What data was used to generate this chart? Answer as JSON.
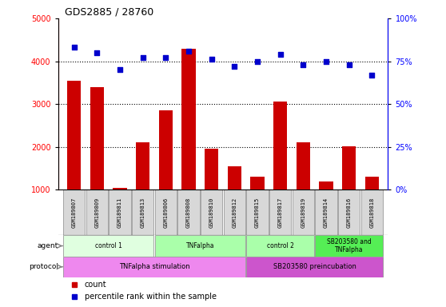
{
  "title": "GDS2885 / 28760",
  "samples": [
    "GSM189807",
    "GSM189809",
    "GSM189811",
    "GSM189813",
    "GSM189806",
    "GSM189808",
    "GSM189810",
    "GSM189812",
    "GSM189815",
    "GSM189817",
    "GSM189819",
    "GSM189814",
    "GSM189816",
    "GSM189818"
  ],
  "counts": [
    3550,
    3400,
    1050,
    2100,
    2850,
    4300,
    1950,
    1550,
    1300,
    3050,
    2100,
    1200,
    2020,
    1300
  ],
  "percentiles": [
    83,
    80,
    70,
    77,
    77,
    81,
    76,
    72,
    75,
    79,
    73,
    75,
    73,
    67
  ],
  "bar_color": "#cc0000",
  "dot_color": "#0000cc",
  "ylim_left": [
    1000,
    5000
  ],
  "ylim_right": [
    0,
    100
  ],
  "yticks_left": [
    1000,
    2000,
    3000,
    4000,
    5000
  ],
  "yticks_right": [
    0,
    25,
    50,
    75,
    100
  ],
  "agent_groups": [
    {
      "label": "control 1",
      "start": 0,
      "end": 3,
      "color": "#e0ffe0"
    },
    {
      "label": "TNFalpha",
      "start": 4,
      "end": 7,
      "color": "#aaffaa"
    },
    {
      "label": "control 2",
      "start": 8,
      "end": 10,
      "color": "#aaffaa"
    },
    {
      "label": "SB203580 and\nTNFalpha",
      "start": 11,
      "end": 13,
      "color": "#55ee55"
    }
  ],
  "protocol_groups": [
    {
      "label": "TNFalpha stimulation",
      "start": 0,
      "end": 7,
      "color": "#ee88ee"
    },
    {
      "label": "SB203580 preincubation",
      "start": 8,
      "end": 13,
      "color": "#cc55cc"
    }
  ],
  "title_fontsize": 9,
  "tick_fontsize": 7,
  "background_color": "#ffffff",
  "sample_bg_color": "#d8d8d8"
}
